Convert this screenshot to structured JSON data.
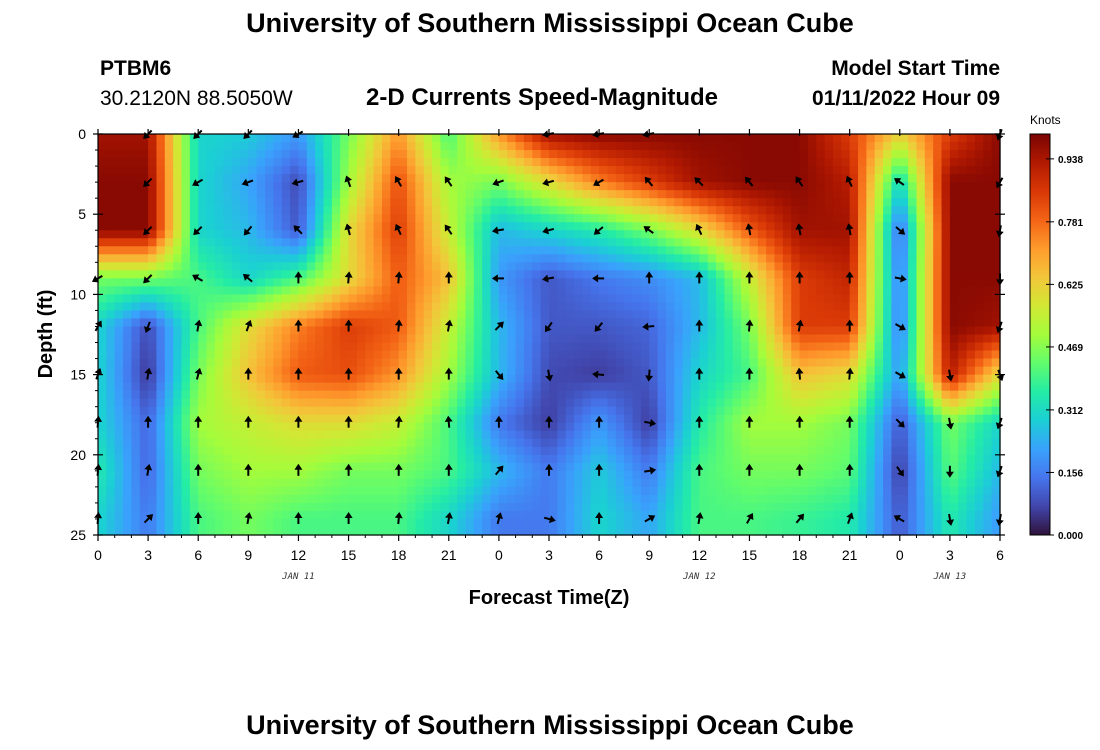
{
  "page": {
    "title_top": "University of Southern Mississippi Ocean Cube",
    "title_bottom": "University of Southern Mississippi Ocean Cube",
    "station": "PTBM6",
    "location": "30.2120N  88.5050W",
    "model_start_label": "Model Start Time",
    "model_start_value": "01/11/2022 Hour 09"
  },
  "chart_data": {
    "type": "heatmap",
    "title": "2-D Currents Speed-Magnitude",
    "xlabel": "Forecast Time(Z)",
    "ylabel": "Depth (ft)",
    "x_hours_since_jan11_00z": [
      0,
      54
    ],
    "ylim": [
      0,
      25
    ],
    "y_ticks": [
      0,
      5,
      10,
      15,
      20,
      25
    ],
    "y_tick_labels": [
      "0",
      "5",
      "10",
      "15",
      "20",
      "25"
    ],
    "x_tick_hours": [
      0,
      3,
      6,
      9,
      12,
      15,
      18,
      21,
      24,
      27,
      30,
      33,
      36,
      39,
      42,
      45,
      48,
      51,
      54
    ],
    "x_tick_labels": [
      "0",
      "3",
      "6",
      "9",
      "12",
      "15",
      "18",
      "21",
      "0",
      "3",
      "6",
      "9",
      "12",
      "15",
      "18",
      "21",
      "0",
      "3",
      "6"
    ],
    "date_labels": [
      {
        "hour": 12,
        "text": "JAN 11"
      },
      {
        "hour": 36,
        "text": "JAN 12"
      },
      {
        "hour": 51,
        "text": "JAN 13"
      }
    ],
    "colorbar": {
      "units": "Knots",
      "range": [
        0,
        1.0
      ],
      "tick_values": [
        0.0,
        0.156,
        0.312,
        0.469,
        0.625,
        0.781,
        0.938
      ],
      "tick_labels": [
        "0.000",
        "0.156",
        "0.312",
        "0.469",
        "0.625",
        "0.781",
        "0.938"
      ],
      "colors": [
        "#30123b",
        "#4145ab",
        "#4675ed",
        "#39a2fc",
        "#1bcfd4",
        "#24eca6",
        "#61fc6c",
        "#a4fc3b",
        "#d1e834",
        "#f3c63a",
        "#fe9b2d",
        "#f36315",
        "#d93806",
        "#b11901",
        "#7a0402"
      ]
    },
    "arrow_depths_ft": [
      0,
      3,
      6,
      9,
      12,
      15,
      18,
      21,
      24
    ],
    "speed_grid": {
      "hours": [
        0,
        3,
        6,
        9,
        12,
        15,
        18,
        21,
        24,
        27,
        30,
        33,
        36,
        39,
        42,
        45,
        48,
        51,
        54
      ],
      "depths_ft": [
        0,
        3,
        6,
        9,
        12,
        15,
        18,
        21,
        24
      ],
      "rows": [
        [
          0.95,
          0.95,
          0.3,
          0.28,
          0.2,
          0.45,
          0.72,
          0.4,
          0.72,
          0.95,
          0.98,
          0.98,
          0.98,
          0.98,
          0.98,
          0.85,
          0.62,
          0.85,
          0.98
        ],
        [
          0.98,
          0.98,
          0.3,
          0.22,
          0.08,
          0.5,
          0.82,
          0.5,
          0.45,
          0.6,
          0.75,
          0.85,
          0.95,
          0.98,
          0.98,
          0.92,
          0.3,
          0.98,
          0.98
        ],
        [
          0.98,
          0.98,
          0.3,
          0.25,
          0.1,
          0.6,
          0.85,
          0.55,
          0.25,
          0.3,
          0.35,
          0.45,
          0.6,
          0.8,
          0.95,
          0.95,
          0.12,
          0.98,
          0.98
        ],
        [
          0.45,
          0.45,
          0.4,
          0.3,
          0.4,
          0.6,
          0.8,
          0.65,
          0.2,
          0.1,
          0.15,
          0.18,
          0.25,
          0.55,
          0.85,
          0.9,
          0.15,
          0.98,
          0.98
        ],
        [
          0.3,
          0.08,
          0.4,
          0.6,
          0.75,
          0.85,
          0.8,
          0.55,
          0.25,
          0.1,
          0.1,
          0.12,
          0.25,
          0.45,
          0.85,
          0.85,
          0.15,
          0.98,
          0.95
        ],
        [
          0.3,
          0.05,
          0.45,
          0.65,
          0.8,
          0.82,
          0.72,
          0.5,
          0.25,
          0.08,
          0.06,
          0.1,
          0.3,
          0.4,
          0.65,
          0.6,
          0.2,
          0.92,
          0.6
        ],
        [
          0.3,
          0.12,
          0.5,
          0.55,
          0.6,
          0.6,
          0.55,
          0.4,
          0.15,
          0.06,
          0.2,
          0.06,
          0.35,
          0.5,
          0.5,
          0.45,
          0.1,
          0.45,
          0.3
        ],
        [
          0.35,
          0.12,
          0.45,
          0.5,
          0.5,
          0.45,
          0.45,
          0.4,
          0.25,
          0.15,
          0.28,
          0.15,
          0.4,
          0.45,
          0.45,
          0.42,
          0.06,
          0.42,
          0.25
        ],
        [
          0.3,
          0.15,
          0.4,
          0.45,
          0.4,
          0.4,
          0.4,
          0.3,
          0.15,
          0.15,
          0.3,
          0.22,
          0.4,
          0.4,
          0.38,
          0.35,
          0.1,
          0.35,
          0.2
        ]
      ]
    },
    "direction_grid_deg_clockwise_from_north": {
      "rows": [
        [
          null,
          225,
          225,
          225,
          240,
          null,
          null,
          null,
          null,
          260,
          260,
          260,
          null,
          null,
          null,
          null,
          null,
          null,
          200
        ],
        [
          null,
          225,
          240,
          250,
          255,
          340,
          330,
          325,
          250,
          255,
          240,
          320,
          315,
          320,
          325,
          335,
          305,
          null,
          210
        ],
        [
          null,
          225,
          225,
          220,
          315,
          345,
          335,
          325,
          260,
          255,
          230,
          305,
          335,
          350,
          350,
          350,
          130,
          null,
          190
        ],
        [
          240,
          225,
          300,
          310,
          0,
          5,
          5,
          0,
          270,
          260,
          270,
          0,
          0,
          0,
          0,
          0,
          100,
          null,
          180
        ],
        [
          30,
          200,
          10,
          20,
          0,
          0,
          5,
          10,
          45,
          215,
          220,
          265,
          0,
          5,
          10,
          0,
          120,
          null,
          200
        ],
        [
          20,
          10,
          15,
          0,
          0,
          0,
          0,
          0,
          140,
          170,
          275,
          185,
          0,
          0,
          355,
          5,
          120,
          170,
          160
        ],
        [
          5,
          0,
          0,
          0,
          0,
          0,
          5,
          355,
          0,
          0,
          0,
          100,
          0,
          0,
          0,
          0,
          135,
          170,
          200
        ],
        [
          5,
          10,
          0,
          0,
          0,
          0,
          0,
          0,
          40,
          0,
          0,
          80,
          0,
          0,
          0,
          0,
          145,
          180,
          200
        ],
        [
          5,
          45,
          0,
          10,
          0,
          0,
          5,
          10,
          15,
          105,
          0,
          60,
          10,
          30,
          40,
          20,
          300,
          170,
          190
        ]
      ]
    }
  }
}
